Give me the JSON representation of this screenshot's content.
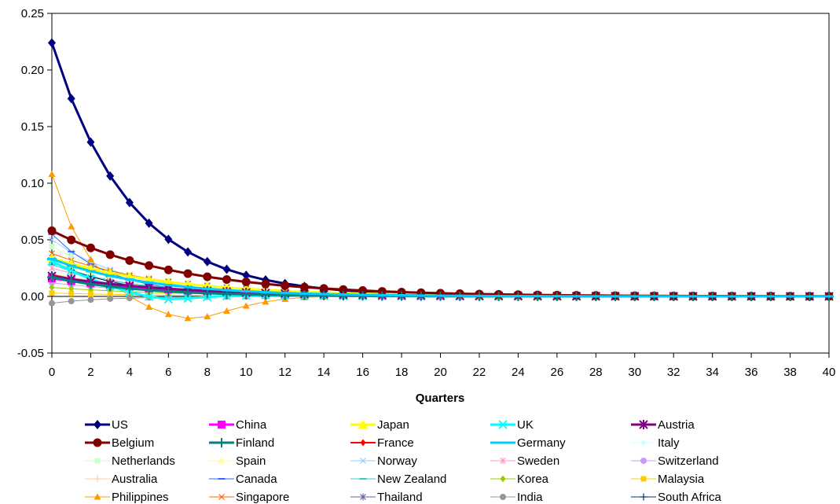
{
  "chart_data": {
    "type": "line",
    "title": "",
    "xlabel": "Quarters",
    "ylabel": "",
    "xlim": [
      0,
      40
    ],
    "ylim": [
      -0.05,
      0.25
    ],
    "x_ticks": [
      0,
      2,
      4,
      6,
      8,
      10,
      12,
      14,
      16,
      18,
      20,
      22,
      24,
      26,
      28,
      30,
      32,
      34,
      36,
      38,
      40
    ],
    "y_ticks": [
      "-0.05",
      "0.00",
      "0.05",
      "0.10",
      "0.15",
      "0.20",
      "0.25"
    ],
    "grid": false,
    "legend_position": "bottom",
    "x": [
      0,
      1,
      2,
      3,
      4,
      5,
      6,
      7,
      8,
      9,
      10,
      11,
      12,
      13,
      14,
      15,
      16,
      17,
      18,
      19,
      20,
      21,
      22,
      23,
      24,
      25,
      26,
      27,
      28,
      29,
      30,
      31,
      32,
      33,
      34,
      35,
      36,
      37,
      38,
      39,
      40
    ],
    "series": [
      {
        "name": "US",
        "color": "#000080",
        "marker": "diamond",
        "width": 3,
        "init": 0.224,
        "rate": 0.78,
        "bump": 0,
        "bump_peak": 7
      },
      {
        "name": "China",
        "color": "#FF00FF",
        "marker": "square",
        "width": 3,
        "init": 0.016,
        "rate": 0.85,
        "bump": 0,
        "bump_peak": 7
      },
      {
        "name": "Japan",
        "color": "#FFFF00",
        "marker": "triangle",
        "width": 3,
        "init": 0.034,
        "rate": 0.85,
        "bump": 0,
        "bump_peak": 7
      },
      {
        "name": "UK",
        "color": "#00FFFF",
        "marker": "x",
        "width": 3,
        "init": 0.031,
        "rate": 0.75,
        "bump": -0.008,
        "bump_peak": 6
      },
      {
        "name": "Austria",
        "color": "#800080",
        "marker": "star",
        "width": 3,
        "init": 0.018,
        "rate": 0.85,
        "bump": 0,
        "bump_peak": 7
      },
      {
        "name": "Belgium",
        "color": "#800000",
        "marker": "circle",
        "width": 3,
        "init": 0.058,
        "rate": 0.86,
        "bump": 0,
        "bump_peak": 7
      },
      {
        "name": "Finland",
        "color": "#008080",
        "marker": "plus",
        "width": 3,
        "init": 0.017,
        "rate": 0.8,
        "bump": 0,
        "bump_peak": 7
      },
      {
        "name": "France",
        "color": "#FF0000",
        "marker": "diamond",
        "width": 2,
        "init": 0.019,
        "rate": 0.82,
        "bump": 0,
        "bump_peak": 7
      },
      {
        "name": "Germany",
        "color": "#00CCFF",
        "marker": "dash",
        "width": 3,
        "init": 0.033,
        "rate": 0.82,
        "bump": 0,
        "bump_peak": 7
      },
      {
        "name": "Italy",
        "color": "#CCFFFF",
        "marker": "diamond",
        "width": 1,
        "init": 0.022,
        "rate": 0.84,
        "bump": 0,
        "bump_peak": 7
      },
      {
        "name": "Netherlands",
        "color": "#CCFFCC",
        "marker": "square",
        "width": 1,
        "init": 0.044,
        "rate": 0.8,
        "bump": 0,
        "bump_peak": 7
      },
      {
        "name": "Spain",
        "color": "#FFFF99",
        "marker": "triangle",
        "width": 1,
        "init": 0.03,
        "rate": 0.84,
        "bump": 0,
        "bump_peak": 7
      },
      {
        "name": "Norway",
        "color": "#99CCFF",
        "marker": "x",
        "width": 1,
        "init": 0.05,
        "rate": 0.78,
        "bump": 0,
        "bump_peak": 7
      },
      {
        "name": "Sweden",
        "color": "#FF99CC",
        "marker": "star",
        "width": 1,
        "init": 0.025,
        "rate": 0.82,
        "bump": 0,
        "bump_peak": 7
      },
      {
        "name": "Switzerland",
        "color": "#CC99FF",
        "marker": "circle",
        "width": 1,
        "init": 0.012,
        "rate": 0.85,
        "bump": 0,
        "bump_peak": 7
      },
      {
        "name": "Australia",
        "color": "#FFCC99",
        "marker": "plus",
        "width": 1,
        "init": 0.02,
        "rate": 0.84,
        "bump": 0,
        "bump_peak": 7
      },
      {
        "name": "Canada",
        "color": "#3366FF",
        "marker": "dash",
        "width": 1,
        "init": 0.055,
        "rate": 0.72,
        "bump": 0,
        "bump_peak": 7
      },
      {
        "name": "New Zealand",
        "color": "#33CCCC",
        "marker": "dash",
        "width": 1,
        "init": 0.028,
        "rate": 0.8,
        "bump": 0,
        "bump_peak": 7
      },
      {
        "name": "Korea",
        "color": "#99CC00",
        "marker": "diamond",
        "width": 1,
        "init": 0.008,
        "rate": 0.85,
        "bump": 0,
        "bump_peak": 7
      },
      {
        "name": "Malaysia",
        "color": "#FFCC00",
        "marker": "square",
        "width": 1,
        "init": 0.003,
        "rate": 0.85,
        "bump": 0,
        "bump_peak": 7
      },
      {
        "name": "Philippines",
        "color": "#FF9900",
        "marker": "triangle",
        "width": 1,
        "init": 0.108,
        "rate": 0.58,
        "bump": -0.022,
        "bump_peak": 7.5
      },
      {
        "name": "Singapore",
        "color": "#FF6600",
        "marker": "x",
        "width": 1,
        "init": 0.038,
        "rate": 0.84,
        "bump": 0,
        "bump_peak": 7
      },
      {
        "name": "Thailand",
        "color": "#666699",
        "marker": "star",
        "width": 1,
        "init": 0.032,
        "rate": 0.86,
        "bump": 0,
        "bump_peak": 7
      },
      {
        "name": "India",
        "color": "#969696",
        "marker": "circle",
        "width": 1,
        "init": -0.006,
        "rate": 0.7,
        "bump": 0,
        "bump_peak": 7
      },
      {
        "name": "South Africa",
        "color": "#003366",
        "marker": "plus",
        "width": 1,
        "init": 0.031,
        "rate": 0.75,
        "bump": 0,
        "bump_peak": 7
      }
    ]
  }
}
